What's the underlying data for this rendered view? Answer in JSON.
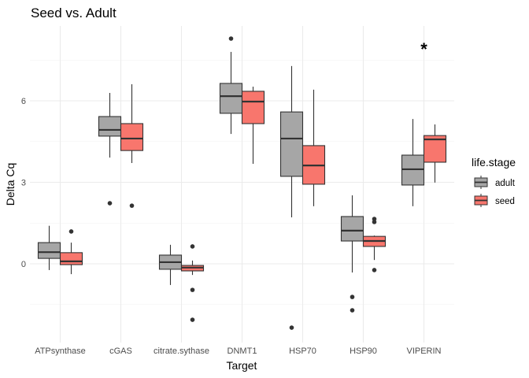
{
  "chart_data": {
    "type": "boxplot",
    "title": "Seed vs. Adult",
    "xlabel": "Target",
    "ylabel": "Delta Cq",
    "ylim": [
      -2.6,
      9.0
    ],
    "yticks": [
      0,
      3,
      6
    ],
    "ytick_labels": [
      "0",
      "3",
      "6"
    ],
    "y_minor_gridlines": [
      -1.5,
      1.5,
      4.5,
      7.5
    ],
    "grid": true,
    "categories": [
      "ATPsynthase",
      "cGAS",
      "citrate.sythase",
      "DNMT1",
      "HSP70",
      "HSP90",
      "VIPERIN"
    ],
    "legend": {
      "title": "life.stage",
      "position": "right",
      "entries": [
        "adult",
        "seed"
      ]
    },
    "series": [
      {
        "name": "adult",
        "color": "#a6a6a6",
        "boxes": [
          {
            "category": "ATPsynthase",
            "lower": -0.23,
            "q1": 0.2,
            "median": 0.43,
            "q3": 0.78,
            "upper": 1.4,
            "outliers": []
          },
          {
            "category": "cGAS",
            "lower": 3.91,
            "q1": 4.7,
            "median": 4.93,
            "q3": 5.42,
            "upper": 6.29,
            "outliers": [
              2.23
            ]
          },
          {
            "category": "citrate.sythase",
            "lower": -0.78,
            "q1": -0.2,
            "median": 0.06,
            "q3": 0.32,
            "upper": 0.7,
            "outliers": []
          },
          {
            "category": "DNMT1",
            "lower": 4.78,
            "q1": 5.54,
            "median": 6.17,
            "q3": 6.64,
            "upper": 7.8,
            "outliers": [
              8.29
            ]
          },
          {
            "category": "HSP70",
            "lower": 1.71,
            "q1": 3.22,
            "median": 4.61,
            "q3": 5.59,
            "upper": 7.28,
            "outliers": [
              -2.35
            ]
          },
          {
            "category": "HSP90",
            "lower": -0.32,
            "q1": 0.84,
            "median": 1.22,
            "q3": 1.74,
            "upper": 2.52,
            "outliers": [
              -1.22,
              -1.71
            ]
          },
          {
            "category": "VIPERIN",
            "lower": 2.12,
            "q1": 2.9,
            "median": 3.48,
            "q3": 4.0,
            "upper": 5.33,
            "outliers": []
          }
        ]
      },
      {
        "name": "seed",
        "color": "#f8766d",
        "boxes": [
          {
            "category": "ATPsynthase",
            "lower": -0.38,
            "q1": -0.03,
            "median": 0.09,
            "q3": 0.41,
            "upper": 0.78,
            "outliers": [
              1.19
            ]
          },
          {
            "category": "cGAS",
            "lower": 3.71,
            "q1": 4.17,
            "median": 4.61,
            "q3": 5.16,
            "upper": 6.61,
            "outliers": [
              2.14
            ]
          },
          {
            "category": "citrate.sythase",
            "lower": -0.41,
            "q1": -0.26,
            "median": -0.14,
            "q3": -0.06,
            "upper": 0.12,
            "outliers": [
              0.64,
              -0.96,
              -2.06
            ]
          },
          {
            "category": "DNMT1",
            "lower": 3.68,
            "q1": 5.16,
            "median": 5.97,
            "q3": 6.35,
            "upper": 6.52,
            "outliers": []
          },
          {
            "category": "HSP70",
            "lower": 2.12,
            "q1": 2.93,
            "median": 3.62,
            "q3": 4.35,
            "upper": 6.41,
            "outliers": []
          },
          {
            "category": "HSP90",
            "lower": 0.14,
            "q1": 0.64,
            "median": 0.84,
            "q3": 1.01,
            "upper": 1.04,
            "outliers": [
              1.65,
              1.54,
              -0.23
            ]
          },
          {
            "category": "VIPERIN",
            "lower": 2.99,
            "q1": 3.74,
            "median": 4.58,
            "q3": 4.72,
            "upper": 5.13,
            "outliers": []
          }
        ]
      }
    ],
    "annotations": [
      {
        "text": "*",
        "category": "VIPERIN",
        "y": 8.0
      }
    ]
  }
}
